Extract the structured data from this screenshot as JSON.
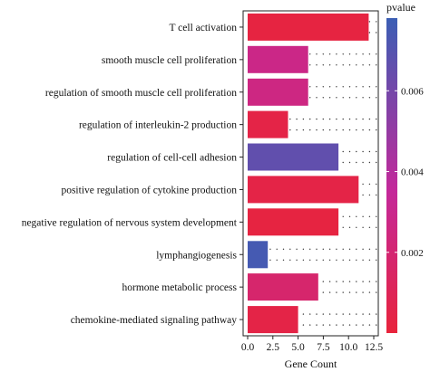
{
  "chart_data": {
    "type": "bar",
    "orientation": "horizontal",
    "xlabel": "Gene Count",
    "ylabel": "",
    "xlim": [
      0,
      12.5
    ],
    "x_ticks": [
      "0.0",
      "2.5",
      "5.0",
      "7.5",
      "10.0",
      "12.5"
    ],
    "grid": "dotted",
    "categories": [
      "T cell activation",
      "smooth muscle cell proliferation",
      "regulation of smooth muscle cell proliferation",
      "regulation of interleukin-2 production",
      "regulation of cell-cell adhesion",
      "positive regulation of cytokine production",
      "negative regulation of nervous system development",
      "lymphangiogenesis",
      "hormone metabolic process",
      "chemokine-mediated signaling pathway"
    ],
    "values": [
      12,
      6,
      6,
      4,
      9,
      11,
      9,
      2,
      7,
      5
    ],
    "pvalues": [
      0.0002,
      0.0028,
      0.0026,
      0.0004,
      0.0066,
      0.0004,
      0.0002,
      0.0075,
      0.0018,
      0.0004
    ],
    "colorbar": {
      "title": "pvalue",
      "range": [
        0,
        0.0078
      ],
      "ticks": [
        0.002,
        0.004,
        0.006
      ],
      "tick_labels": [
        "0.002",
        "0.004",
        "0.006"
      ],
      "color_low": "#e8243c",
      "color_mid": "#c4289a",
      "color_high": "#3b5eb4",
      "placement": "right"
    }
  }
}
